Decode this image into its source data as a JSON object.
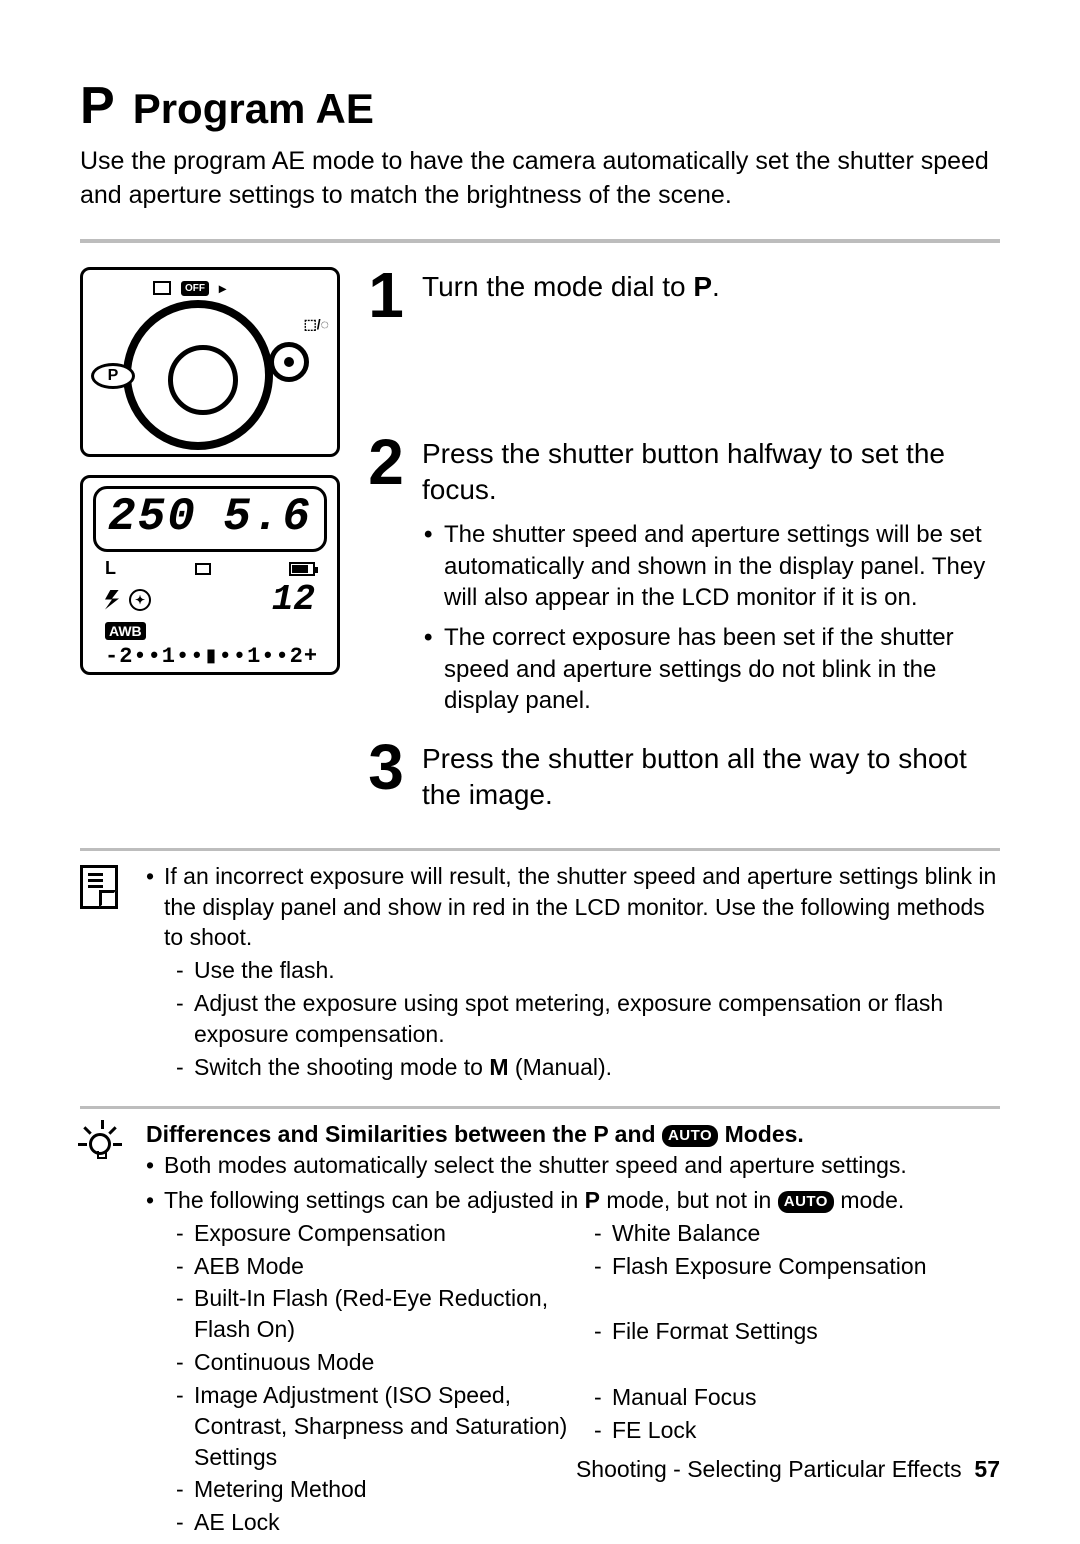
{
  "title": {
    "mode_letter": "P",
    "text": "Program AE"
  },
  "intro": "Use the program AE mode to have the camera automatically set the shutter speed and aperture settings to match the brightness of the scene.",
  "dial_illus": {
    "off_label": "OFF",
    "p_label": "P",
    "side_label": "⬚/◌"
  },
  "lcd": {
    "shutter": "250",
    "aperture": "5.6",
    "size_label": "L",
    "shots": "12",
    "awb": "AWB",
    "ev_scale": "-2••1••▮••1••2+"
  },
  "steps": [
    {
      "num": "1",
      "title_pre": "Turn the mode dial to",
      "title_icon": "P",
      "title_post": "."
    },
    {
      "num": "2",
      "title": "Press the shutter button halfway to set the focus.",
      "bullets": [
        "The shutter speed and aperture settings will be set automatically and shown in the display panel. They will also appear in the LCD monitor if it is on.",
        "The correct exposure has been set if the shutter speed and aperture settings do not blink in the display panel."
      ]
    },
    {
      "num": "3",
      "title": "Press the shutter button all the way to shoot the image."
    }
  ],
  "note": {
    "lead": "If an incorrect exposure will result, the shutter speed and aperture settings blink in the display panel and show in red in the LCD monitor. Use the following methods to shoot.",
    "items": [
      "Use the flash.",
      "Adjust the exposure using spot metering, exposure compensation or flash exposure compensation.",
      {
        "pre": "Switch the shooting mode to ",
        "bold": "M",
        "post": " (Manual)."
      }
    ]
  },
  "tip": {
    "heading_pre": "Differences and Similarities between the P and ",
    "heading_pill": "AUTO",
    "heading_post": " Modes.",
    "b1": "Both modes automatically select the shutter speed and aperture settings.",
    "b2_pre": "The following settings can be adjusted in ",
    "b2_p": "P",
    "b2_mid": " mode, but not in ",
    "b2_pill": "AUTO",
    "b2_post": " mode.",
    "col1": [
      "Exposure Compensation",
      "AEB Mode",
      "Built-In Flash (Red-Eye Reduction, Flash On)",
      "Continuous Mode",
      "Image Adjustment (ISO Speed, Contrast, Sharpness and Saturation) Settings",
      "Metering Method",
      "AE Lock"
    ],
    "col2": [
      "White Balance",
      "Flash Exposure Compensation",
      "",
      "File Format Settings",
      "",
      "Manual Focus",
      "FE Lock"
    ]
  },
  "footer": {
    "section": "Shooting - Selecting Particular Effects",
    "page": "57"
  }
}
